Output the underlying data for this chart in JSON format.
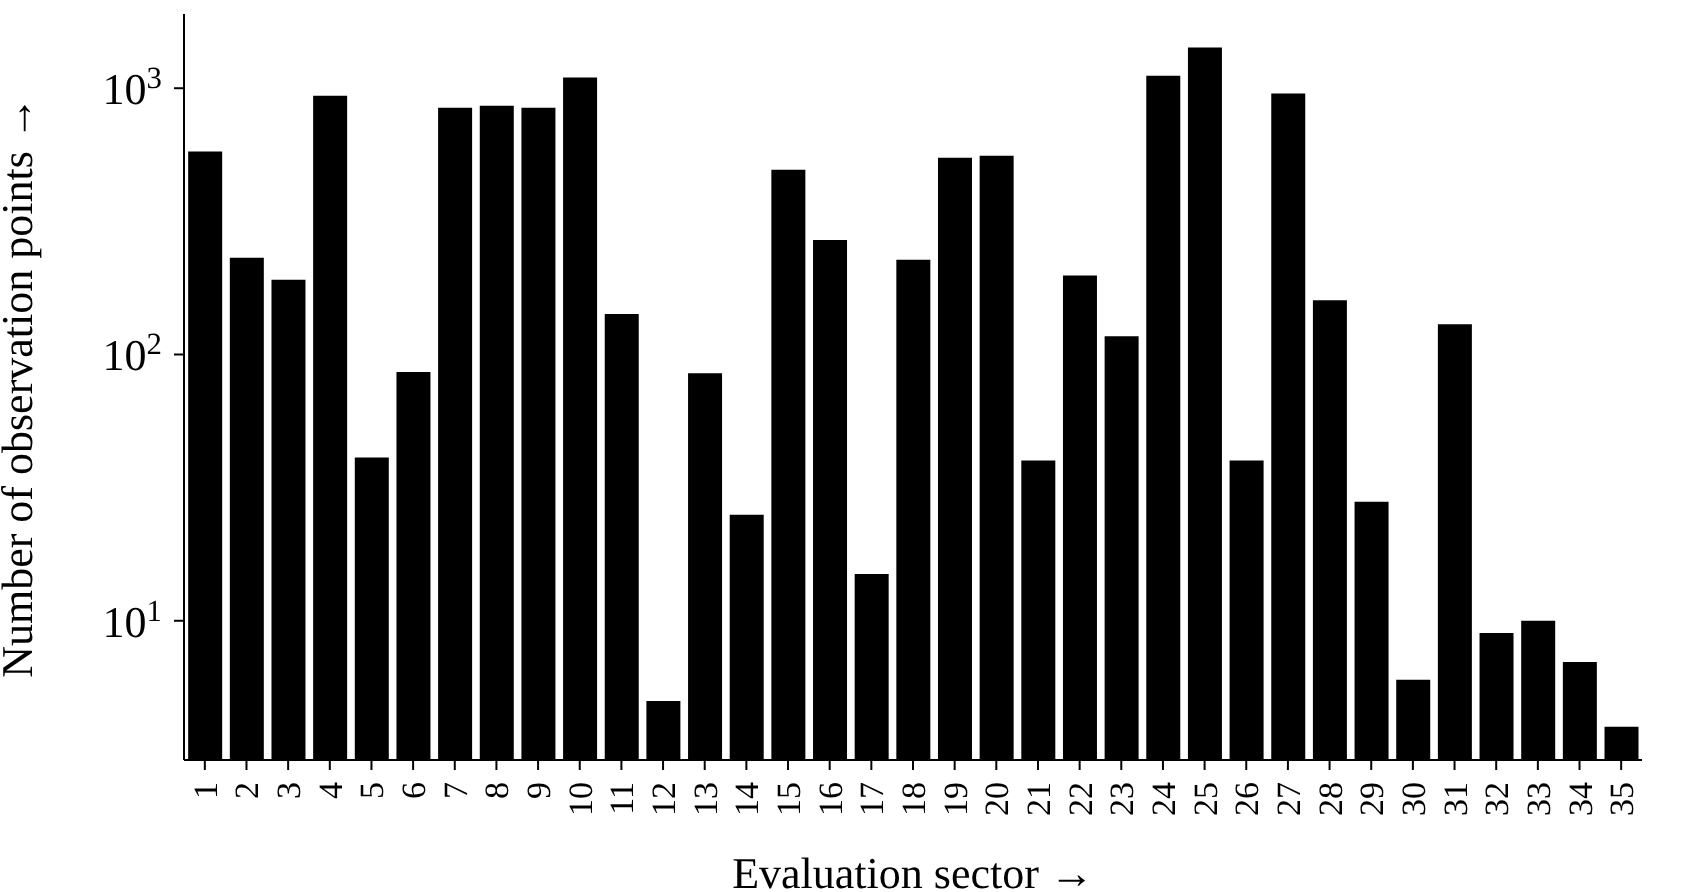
{
  "chart_data": {
    "type": "bar",
    "xlabel": "Evaluation sector →",
    "ylabel": "Number of observation points →",
    "categories": [
      "1",
      "2",
      "3",
      "4",
      "5",
      "6",
      "7",
      "8",
      "9",
      "10",
      "11",
      "12",
      "13",
      "14",
      "15",
      "16",
      "17",
      "18",
      "19",
      "20",
      "21",
      "22",
      "23",
      "24",
      "25",
      "26",
      "27",
      "28",
      "29",
      "30",
      "31",
      "32",
      "33",
      "34",
      "35"
    ],
    "values": [
      578,
      231,
      191,
      938,
      41,
      86,
      845,
      860,
      845,
      1096,
      142,
      5,
      85,
      25,
      494,
      269,
      15,
      227,
      548,
      558,
      40,
      198,
      117,
      1115,
      1422,
      40,
      955,
      160,
      28,
      6,
      130,
      9,
      10,
      7,
      4
    ],
    "color": "#000000",
    "log": "y",
    "ylim": [
      3,
      1900
    ],
    "yticks": [
      {
        "value": 10,
        "label": "10$^{1}$"
      },
      {
        "value": 100,
        "label": "10$^{2}$"
      },
      {
        "value": 1000,
        "label": "10$^{3}$"
      }
    ]
  }
}
